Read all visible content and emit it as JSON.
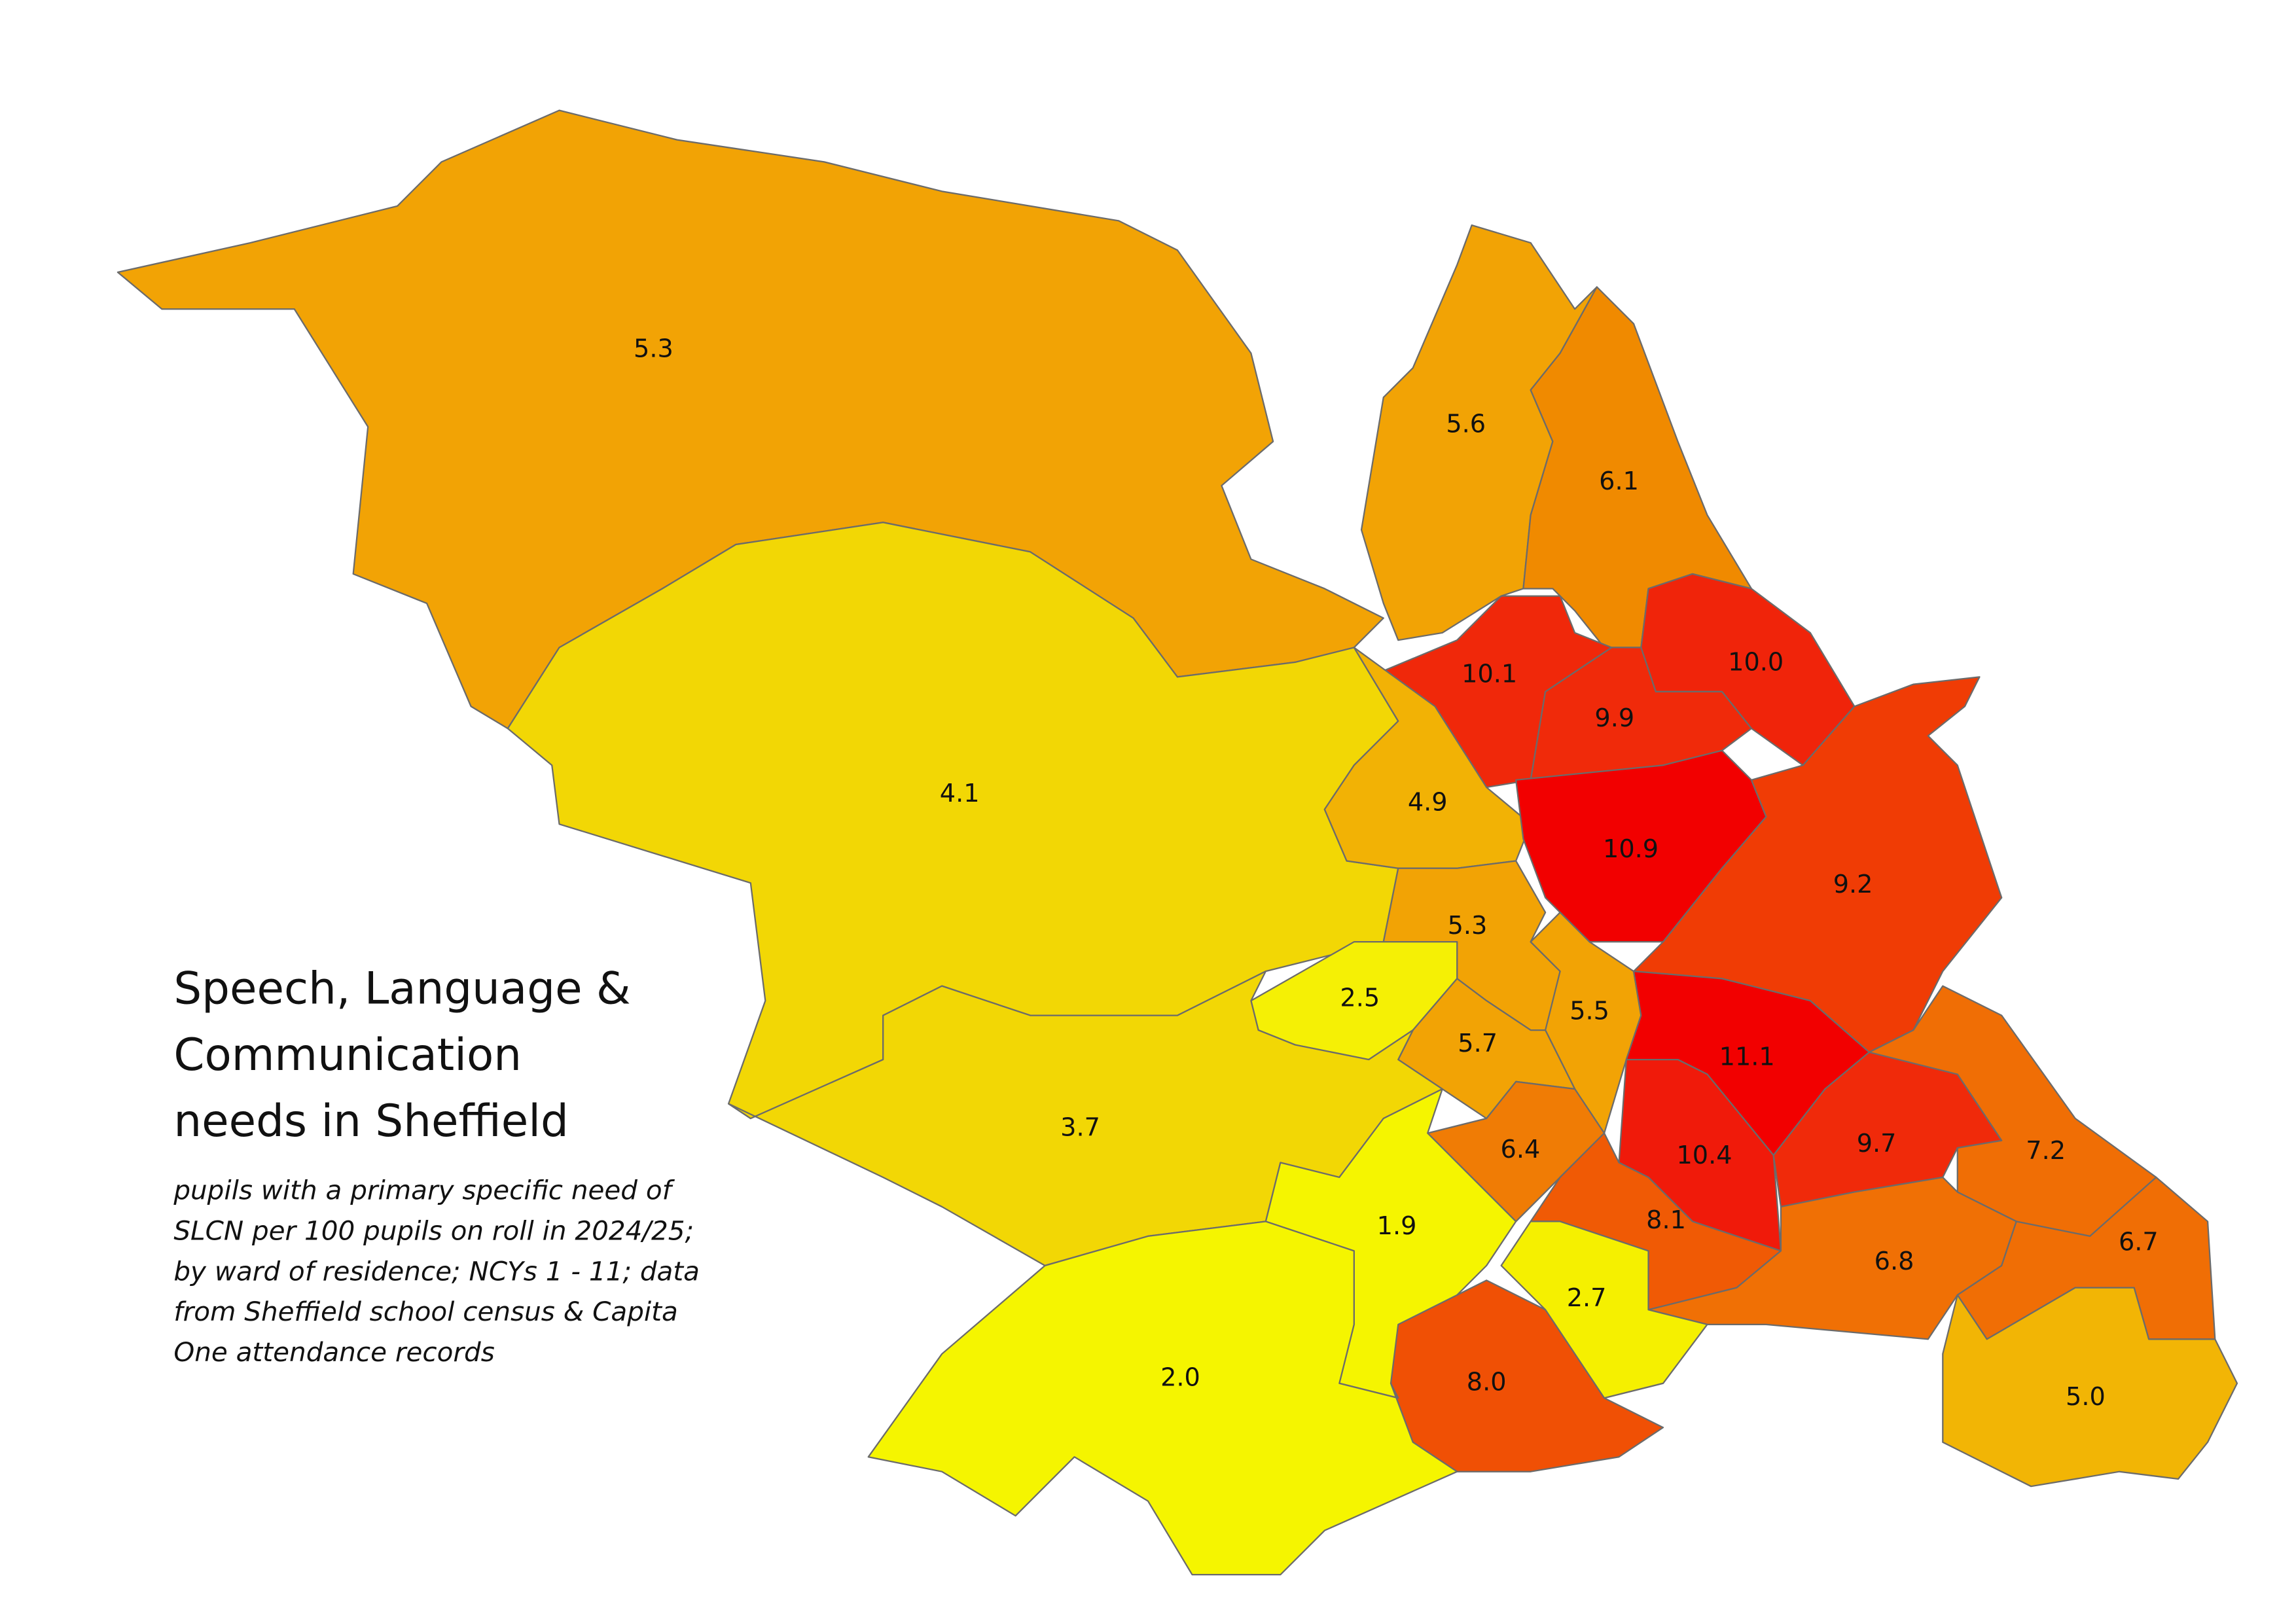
{
  "chart_data": {
    "type": "choropleth",
    "title": [
      "Speech, Language &",
      "Communication",
      "needs in Sheffield"
    ],
    "subtitle": [
      "pupils with a primary specific need of",
      "SLCN per 100 pupils on roll in 2024/25;",
      "by ward of residence; NCYs 1 - 11; data",
      "from Sheffield school census & Capita",
      "One attendance records"
    ],
    "values": [
      5.3,
      5.6,
      6.1,
      10.1,
      10.0,
      9.9,
      4.1,
      4.9,
      10.9,
      9.2,
      5.3,
      2.5,
      5.5,
      5.7,
      11.1,
      3.7,
      6.4,
      10.4,
      9.7,
      7.2,
      8.1,
      1.9,
      6.8,
      6.7,
      2.7,
      8.0,
      2.0,
      5.0
    ],
    "value_labels": [
      "5.3",
      "5.6",
      "6.1",
      "10.1",
      "10.0",
      "9.9",
      "4.1",
      "4.9",
      "10.9",
      "9.2",
      "5.3",
      "2.5",
      "5.5",
      "5.7",
      "11.1",
      "3.7",
      "6.4",
      "10.4",
      "9.7",
      "7.2",
      "8.1",
      "1.9",
      "6.8",
      "6.7",
      "2.7",
      "8.0",
      "2.0",
      "5.0"
    ],
    "colors": [
      "#f2a305",
      "#f2a305",
      "#f08a00",
      "#f0280a",
      "#f0240a",
      "#f02a0a",
      "#f2d705",
      "#f2b205",
      "#f20000",
      "#f03c05",
      "#f2a305",
      "#f5f005",
      "#f2a305",
      "#f2a305",
      "#f20000",
      "#f2d705",
      "#f07c05",
      "#f01a0a",
      "#f02a0a",
      "#f06e05",
      "#f05a05",
      "#f5f500",
      "#f07005",
      "#f06e05",
      "#f5f000",
      "#f05005",
      "#f5f500",
      "#f2b505"
    ]
  }
}
